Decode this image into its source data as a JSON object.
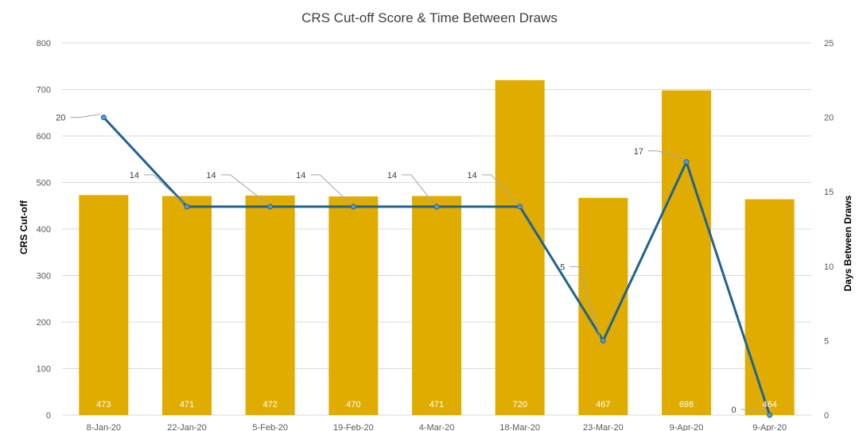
{
  "chart_data": {
    "type": "bar",
    "title": "CRS Cut-off Score & Time Between Draws",
    "ylabel": "CRS Cut-off",
    "y2label": "Days Between Draws",
    "categories": [
      "8-Jan-20",
      "22-Jan-20",
      "5-Feb-20",
      "19-Feb-20",
      "4-Mar-20",
      "18-Mar-20",
      "23-Mar-20",
      "9-Apr-20",
      "9-Apr-20"
    ],
    "series": [
      {
        "type": "bar",
        "axis": "left",
        "values": [
          473,
          471,
          472,
          470,
          471,
          720,
          467,
          698,
          464
        ],
        "color": "#E0AC00"
      },
      {
        "type": "line",
        "axis": "right",
        "values": [
          20,
          14,
          14,
          14,
          14,
          14,
          5,
          17,
          0
        ],
        "color": "#1F6391"
      }
    ],
    "ylim": [
      0,
      800
    ],
    "yticks": [
      "0",
      "100",
      "200",
      "300",
      "400",
      "500",
      "600",
      "700",
      "800"
    ],
    "y2lim": [
      0,
      25
    ],
    "y2ticks": [
      "0",
      "5",
      "10",
      "15",
      "20",
      "25"
    ],
    "grid": true,
    "data_labels": true
  }
}
